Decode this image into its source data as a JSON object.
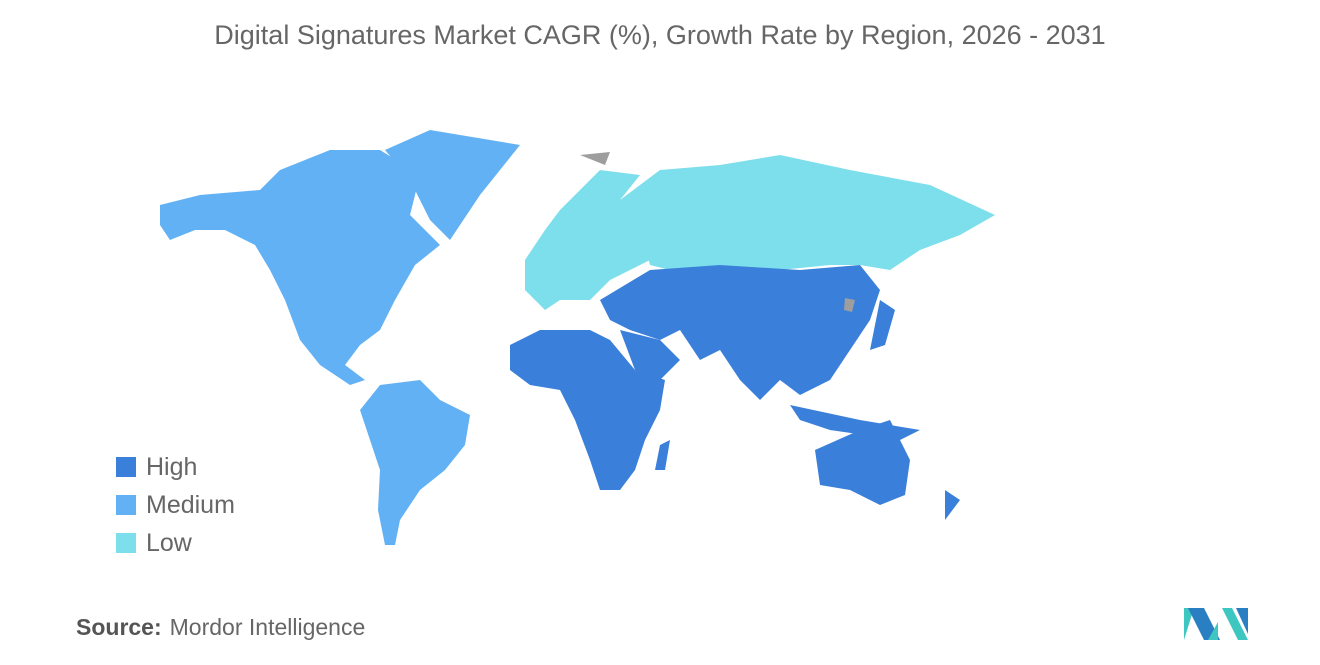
{
  "title": "Digital Signatures Market CAGR (%), Growth Rate by Region, 2026 - 2031",
  "legend": [
    {
      "label": "High",
      "color": "#3a7fd9"
    },
    {
      "label": "Medium",
      "color": "#62b1f5"
    },
    {
      "label": "Low",
      "color": "#7ddfec"
    }
  ],
  "no_data_color": "#9e9e9e",
  "regions": [
    {
      "name": "North America",
      "level": "Medium"
    },
    {
      "name": "South America",
      "level": "Medium"
    },
    {
      "name": "Europe",
      "level": "Low"
    },
    {
      "name": "Russia",
      "level": "Low"
    },
    {
      "name": "Asia-Pacific",
      "level": "High"
    },
    {
      "name": "Middle East and Africa",
      "level": "High"
    }
  ],
  "source": {
    "label": "Source:",
    "value": "Mordor Intelligence"
  }
}
